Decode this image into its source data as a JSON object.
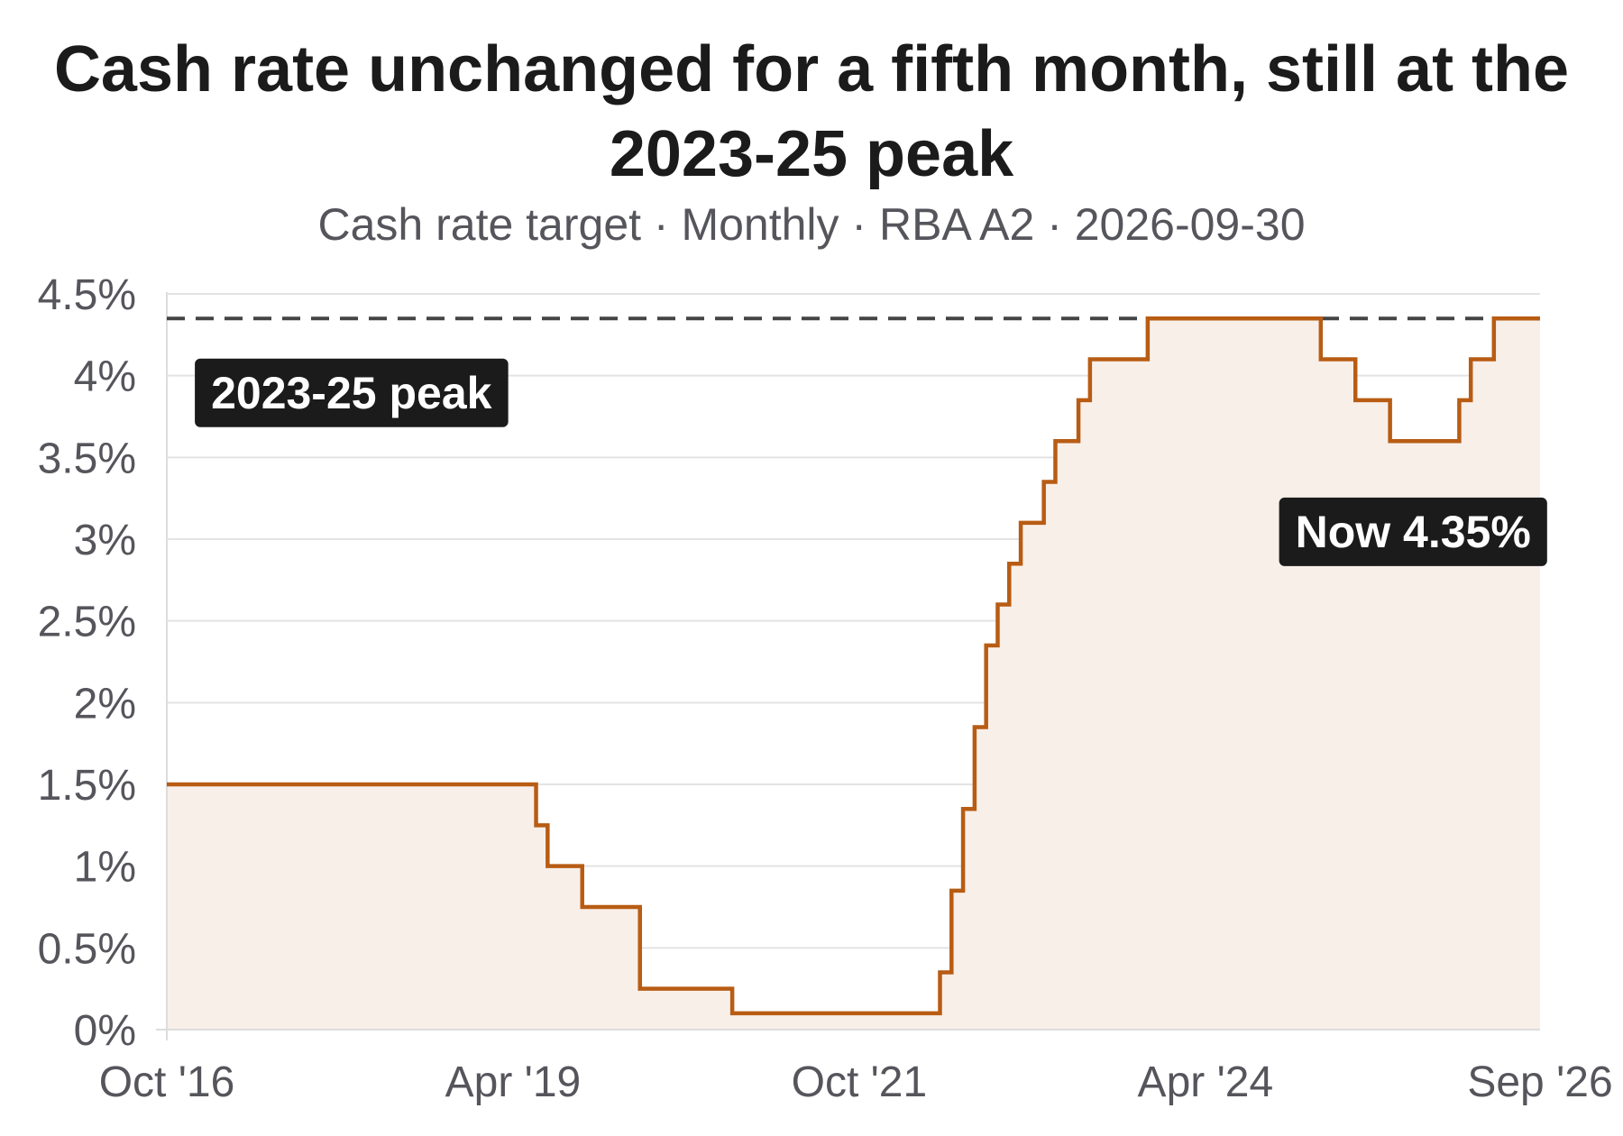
{
  "chart_data": {
    "type": "line",
    "step": true,
    "title": "Cash rate unchanged for a fifth month, still at the 2023-25 peak",
    "subtitle": "Cash rate target · Monthly · RBA A2 · 2026-09-30",
    "xlabel": "",
    "ylabel": "",
    "ylim": [
      0,
      4.5
    ],
    "y_ticks": [
      0,
      0.5,
      1,
      1.5,
      2,
      2.5,
      3,
      3.5,
      4,
      4.5
    ],
    "y_tick_labels": [
      "0%",
      "0.5%",
      "1%",
      "1.5%",
      "2%",
      "2.5%",
      "3%",
      "3.5%",
      "4%",
      "4.5%"
    ],
    "x_range": [
      "2016-10",
      "2026-09"
    ],
    "x_ticks": [
      "2016-10",
      "2019-04",
      "2021-10",
      "2024-04",
      "2026-09"
    ],
    "x_tick_labels": [
      "Oct '16",
      "Apr '19",
      "Oct '21",
      "Apr '24",
      "Sep '26"
    ],
    "grid": true,
    "colors": {
      "line": "#b85c14",
      "fill": "#f9efe9",
      "peak_line": "#444444",
      "annotation_bg": "#1b1b1b"
    },
    "series": [
      {
        "points": [
          [
            "2016-10",
            1.5
          ],
          [
            "2019-06",
            1.25
          ],
          [
            "2019-07",
            1.0
          ],
          [
            "2019-10",
            0.75
          ],
          [
            "2020-03",
            0.25
          ],
          [
            "2020-11",
            0.1
          ],
          [
            "2022-05",
            0.35
          ],
          [
            "2022-06",
            0.85
          ],
          [
            "2022-07",
            1.35
          ],
          [
            "2022-08",
            1.85
          ],
          [
            "2022-09",
            2.35
          ],
          [
            "2022-10",
            2.6
          ],
          [
            "2022-11",
            2.85
          ],
          [
            "2022-12",
            3.1
          ],
          [
            "2023-02",
            3.35
          ],
          [
            "2023-03",
            3.6
          ],
          [
            "2023-05",
            3.85
          ],
          [
            "2023-06",
            4.1
          ],
          [
            "2023-11",
            4.35
          ],
          [
            "2025-02",
            4.1
          ],
          [
            "2025-05",
            3.85
          ],
          [
            "2025-08",
            3.6
          ],
          [
            "2026-02",
            3.85
          ],
          [
            "2026-03",
            4.1
          ],
          [
            "2026-05",
            4.35
          ],
          [
            "2026-09",
            4.35
          ]
        ]
      }
    ],
    "reference_line": {
      "y": 4.35,
      "style": "dashed"
    },
    "annotations": [
      {
        "text": "2023-25 peak",
        "x": "2018-02",
        "y": 3.9
      },
      {
        "text": "Now 4.35%",
        "x": "2025-10",
        "y": 3.05
      }
    ]
  }
}
